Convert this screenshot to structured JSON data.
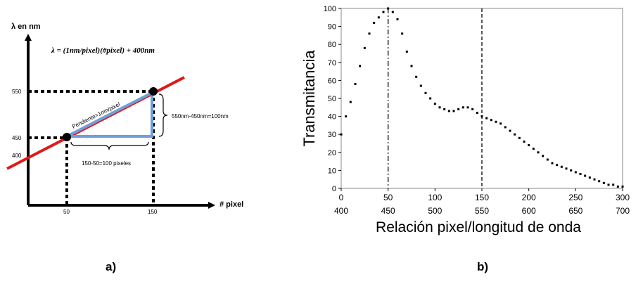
{
  "panel_a": {
    "y_axis_label": "λ en nm",
    "x_axis_label": "# pixel",
    "equation": "λ = (1nm/pixel)(#pixel) + 400nm",
    "slope_label": "Pendiente=1nm/pixel",
    "delta_lambda_label": "550nm-450nm=100nm",
    "delta_pixel_label": "150-50=100  pixeles",
    "y_ticks": [
      "550",
      "450",
      "400"
    ],
    "x_ticks": [
      "50",
      "150"
    ],
    "caption": "a)",
    "colors": {
      "line": "#e0181b",
      "triangle": "#6f9fd8",
      "axis": "#000000"
    }
  },
  "panel_b": {
    "caption": "b)",
    "markers": {
      "dash_dot_at": 50,
      "dashed_at": 150
    }
  },
  "chart_data": {
    "type": "scatter",
    "title": "",
    "ylabel": "Transmitancia",
    "xlabel": "Relación pixel/longitud de onda",
    "xlim": [
      0,
      300
    ],
    "ylim": [
      0,
      100
    ],
    "x_ticks": [
      "0",
      "50",
      "100",
      "150",
      "200",
      "250",
      "300"
    ],
    "x_ticks_secondary": [
      "400",
      "450",
      "500",
      "550",
      "600",
      "650",
      "700"
    ],
    "y_ticks": [
      "0",
      "10",
      "20",
      "30",
      "40",
      "50",
      "60",
      "70",
      "80",
      "90",
      "100"
    ],
    "grid": false,
    "series": [
      {
        "x": [
          0,
          5,
          10,
          15,
          20,
          25,
          30,
          35,
          40,
          45,
          50,
          55,
          60,
          65,
          70,
          75,
          80,
          85,
          90,
          95,
          100,
          105,
          110,
          115,
          120,
          125,
          130,
          135,
          140,
          145,
          150,
          155,
          160,
          165,
          170,
          175,
          180,
          185,
          190,
          195,
          200,
          205,
          210,
          215,
          220,
          225,
          230,
          235,
          240,
          245,
          250,
          255,
          260,
          265,
          270,
          275,
          280,
          285,
          290,
          295,
          300
        ],
        "y": [
          30,
          40,
          48,
          58,
          68,
          78,
          86,
          92,
          95,
          98,
          100,
          98,
          94,
          86,
          76,
          68,
          62,
          57,
          53,
          50,
          47,
          45,
          44,
          43,
          43,
          44,
          45,
          45,
          44,
          42,
          40,
          39,
          38,
          37,
          36,
          34,
          32,
          30,
          28,
          26,
          24,
          22,
          20,
          18,
          16,
          14,
          13,
          12,
          11,
          10,
          9,
          8,
          7,
          6,
          5,
          4,
          3,
          2,
          2,
          1,
          1
        ]
      }
    ]
  }
}
